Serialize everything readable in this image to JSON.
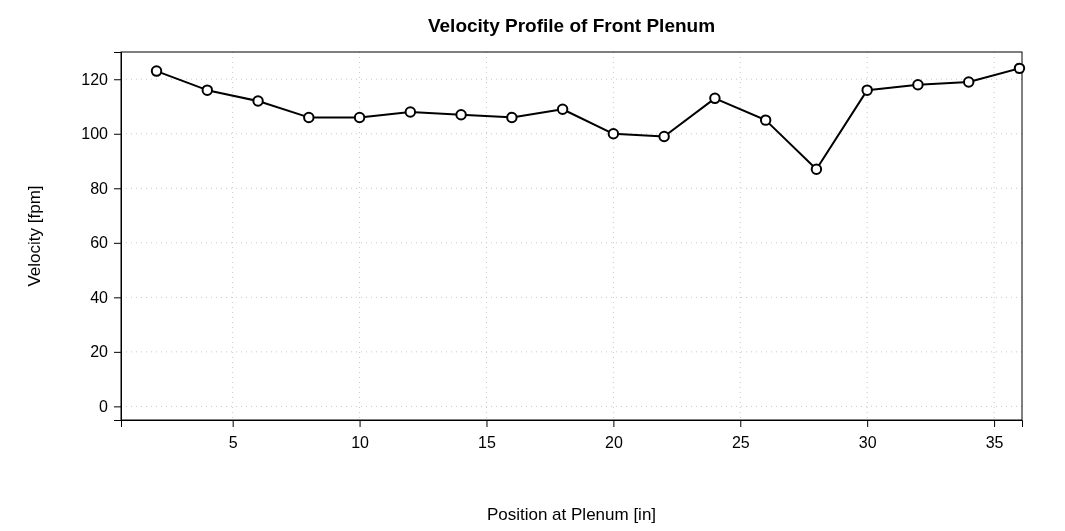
{
  "chart_data": {
    "type": "line",
    "title": "Velocity Profile of Front Plenum",
    "xlabel": "Position at Plenum [in]",
    "ylabel": "Velocity [fpm]",
    "x": [
      2,
      4,
      6,
      8,
      10,
      12,
      14,
      16,
      18,
      20,
      22,
      24,
      26,
      28,
      30,
      32,
      34,
      36
    ],
    "series": [
      {
        "color": "#000000",
        "values": [
          123,
          116,
          112,
          106,
          106,
          108,
          107,
          106,
          109,
          100,
          99,
          113,
          105,
          87,
          116,
          118,
          119,
          124
        ]
      }
    ],
    "xlim": [
      0.6,
      36.1
    ],
    "xticks": [
      5,
      10,
      15,
      20,
      25,
      30,
      35
    ],
    "ylim": [
      -5,
      130
    ],
    "yticks": [
      0,
      20,
      40,
      60,
      80,
      100,
      120
    ],
    "grid": true,
    "marker": "circle",
    "line_style": "solid"
  }
}
